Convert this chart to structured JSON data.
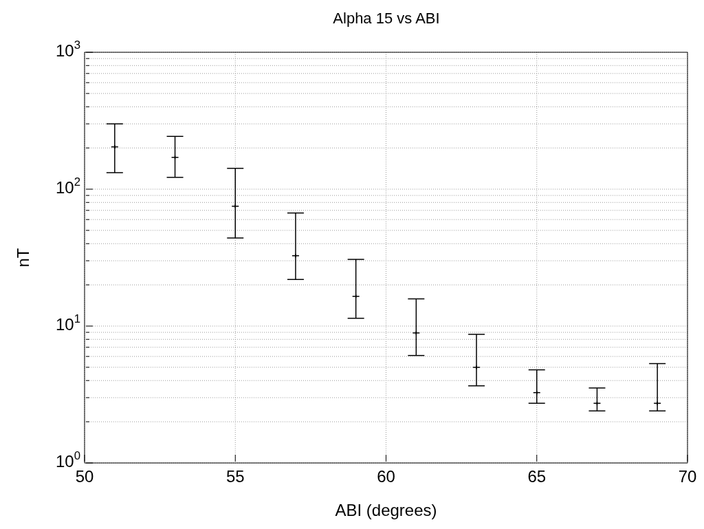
{
  "chart_data": {
    "type": "scatter",
    "title": "Alpha 15 vs ABI",
    "xlabel": "ABI (degrees)",
    "ylabel": "nT",
    "x": [
      51,
      53,
      55,
      57,
      59,
      61,
      63,
      65,
      67,
      69
    ],
    "values": [
      204,
      171,
      75,
      32.6,
      16.5,
      8.9,
      5.0,
      3.26,
      2.73,
      2.73
    ],
    "errors": [
      [
        132,
        300
      ],
      [
        122,
        243
      ],
      [
        44,
        142
      ],
      [
        21.9,
        67
      ],
      [
        11.4,
        30.7
      ],
      [
        6.1,
        15.8
      ],
      [
        3.66,
        8.7
      ],
      [
        2.73,
        4.79
      ],
      [
        2.4,
        3.53
      ],
      [
        2.4,
        5.32
      ]
    ],
    "color": "#000000",
    "marker": "cross",
    "log": "y",
    "grid": true,
    "xlim": [
      50,
      70
    ],
    "xticks": [
      50,
      55,
      60,
      65,
      70
    ],
    "ylim": [
      1,
      1000
    ],
    "yticks": [
      {
        "value": 1,
        "label": "10$^{0}$"
      },
      {
        "value": 2,
        "label": null
      },
      {
        "value": 3,
        "label": null
      },
      {
        "value": 4,
        "label": null
      },
      {
        "value": 5,
        "label": null
      },
      {
        "value": 6,
        "label": null
      },
      {
        "value": 7,
        "label": null
      },
      {
        "value": 8,
        "label": null
      },
      {
        "value": 9,
        "label": null
      },
      {
        "value": 10,
        "label": "10$^{1}$"
      },
      {
        "value": 20,
        "label": null
      },
      {
        "value": 30,
        "label": null
      },
      {
        "value": 40,
        "label": null
      },
      {
        "value": 50,
        "label": null
      },
      {
        "value": 60,
        "label": null
      },
      {
        "value": 70,
        "label": null
      },
      {
        "value": 80,
        "label": null
      },
      {
        "value": 90,
        "label": null
      },
      {
        "value": 100,
        "label": "10$^{2}$"
      },
      {
        "value": 200,
        "label": null
      },
      {
        "value": 300,
        "label": null
      },
      {
        "value": 400,
        "label": null
      },
      {
        "value": 500,
        "label": null
      },
      {
        "value": 600,
        "label": null
      },
      {
        "value": 700,
        "label": null
      },
      {
        "value": 800,
        "label": null
      },
      {
        "value": 900,
        "label": null
      },
      {
        "value": 1000,
        "label": "10$^{3}$"
      }
    ]
  }
}
